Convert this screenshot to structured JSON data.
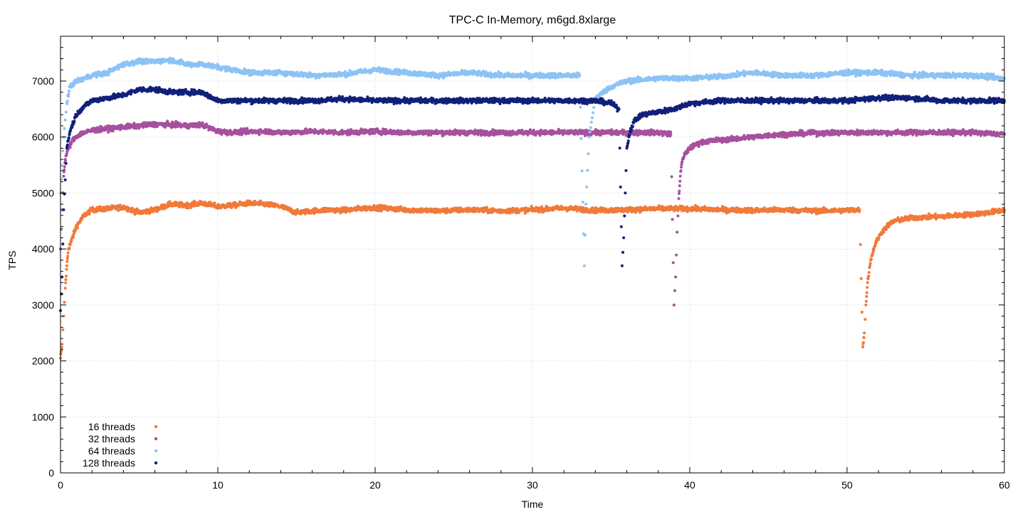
{
  "chart_data": {
    "type": "scatter",
    "title": "TPC-C In-Memory, m6gd.8xlarge",
    "xlabel": "Time",
    "ylabel": "TPS",
    "xlim": [
      0,
      60
    ],
    "ylim": [
      0,
      7800
    ],
    "x_ticks": [
      0,
      10,
      20,
      30,
      40,
      50,
      60
    ],
    "y_ticks": [
      0,
      1000,
      2000,
      3000,
      4000,
      5000,
      6000,
      7000
    ],
    "grid": true,
    "legend_position": "bottom-left",
    "series": [
      {
        "name": "16 threads",
        "color": "#f07a3a",
        "x": [
          0.0,
          0.1,
          0.2,
          0.3,
          0.4,
          0.5,
          0.7,
          1.0,
          1.5,
          2.0,
          3.0,
          4.0,
          5.0,
          6.0,
          7.0,
          8.0,
          9.0,
          10.0,
          11.0,
          12.0,
          13.0,
          14.0,
          15.0,
          16.0,
          17.0,
          18.0,
          19.0,
          20.0,
          22.0,
          24.0,
          26.0,
          28.0,
          30.0,
          32.0,
          34.0,
          36.0,
          38.0,
          40.0,
          42.0,
          44.0,
          46.0,
          48.0,
          50.0,
          50.8,
          51.0,
          51.1,
          51.2,
          51.3,
          51.5,
          51.8,
          52.2,
          52.6,
          53.0,
          54.0,
          55.0,
          56.0,
          57.0,
          58.0,
          59.0,
          60.0
        ],
        "y": [
          2050,
          2300,
          2800,
          3300,
          3700,
          4000,
          4150,
          4400,
          4600,
          4700,
          4720,
          4750,
          4650,
          4700,
          4800,
          4780,
          4820,
          4760,
          4780,
          4820,
          4800,
          4760,
          4650,
          4680,
          4700,
          4690,
          4720,
          4740,
          4700,
          4680,
          4700,
          4680,
          4700,
          4730,
          4690,
          4700,
          4720,
          4720,
          4700,
          4690,
          4700,
          4680,
          4690,
          4700,
          2250,
          2500,
          3000,
          3400,
          3800,
          4100,
          4300,
          4420,
          4500,
          4550,
          4570,
          4580,
          4600,
          4620,
          4650,
          4700
        ]
      },
      {
        "name": "32 threads",
        "color": "#a6509e",
        "x": [
          0.0,
          0.1,
          0.2,
          0.3,
          0.5,
          0.8,
          1.2,
          2.0,
          3.0,
          4.0,
          5.0,
          6.0,
          7.0,
          8.0,
          9.0,
          10.0,
          11.0,
          12.0,
          13.0,
          14.0,
          16.0,
          18.0,
          20.0,
          22.0,
          24.0,
          26.0,
          28.0,
          30.0,
          32.0,
          34.0,
          36.0,
          38.0,
          38.8,
          39.0,
          39.1,
          39.2,
          39.3,
          39.4,
          39.5,
          39.7,
          40.0,
          40.5,
          41.0,
          42.0,
          43.0,
          44.0,
          45.0,
          46.0,
          48.0,
          50.0,
          52.0,
          54.0,
          56.0,
          58.0,
          60.0
        ],
        "y": [
          4000,
          4700,
          5300,
          5600,
          5800,
          5950,
          6050,
          6120,
          6150,
          6180,
          6200,
          6230,
          6220,
          6200,
          6220,
          6100,
          6080,
          6100,
          6100,
          6080,
          6100,
          6080,
          6100,
          6080,
          6080,
          6080,
          6080,
          6080,
          6080,
          6080,
          6080,
          6080,
          6050,
          3000,
          3500,
          4300,
          4900,
          5300,
          5550,
          5700,
          5800,
          5880,
          5920,
          5950,
          5970,
          6000,
          6030,
          6050,
          6070,
          6080,
          6080,
          6080,
          6080,
          6080,
          6050
        ]
      },
      {
        "name": "64 threads",
        "color": "#8cc3f5",
        "x": [
          0.0,
          0.2,
          0.4,
          0.6,
          1.0,
          1.5,
          2.0,
          3.0,
          4.0,
          5.0,
          6.0,
          7.0,
          8.0,
          9.0,
          10.0,
          11.0,
          12.0,
          14.0,
          16.0,
          18.0,
          20.0,
          22.0,
          24.0,
          26.0,
          28.0,
          30.0,
          32.0,
          33.0,
          33.3,
          33.4,
          33.6,
          34.0,
          35.0,
          36.0,
          38.0,
          40.0,
          42.0,
          44.0,
          46.0,
          48.0,
          50.0,
          52.0,
          54.0,
          56.0,
          58.0,
          60.0
        ],
        "y": [
          5000,
          6000,
          6600,
          6900,
          7000,
          7050,
          7100,
          7150,
          7300,
          7350,
          7350,
          7380,
          7300,
          7300,
          7250,
          7200,
          7150,
          7150,
          7100,
          7120,
          7200,
          7150,
          7100,
          7150,
          7100,
          7100,
          7100,
          7100,
          3700,
          4800,
          6000,
          6700,
          6900,
          7000,
          7050,
          7050,
          7080,
          7150,
          7100,
          7100,
          7150,
          7150,
          7100,
          7100,
          7100,
          7050
        ]
      },
      {
        "name": "128 threads",
        "color": "#11207a",
        "x": [
          0.0,
          0.1,
          0.2,
          0.4,
          0.6,
          1.0,
          1.5,
          2.0,
          3.0,
          4.0,
          5.0,
          6.0,
          7.0,
          8.0,
          9.0,
          10.0,
          12.0,
          14.0,
          16.0,
          18.0,
          20.0,
          22.0,
          24.0,
          26.0,
          28.0,
          30.0,
          32.0,
          34.0,
          35.0,
          35.5,
          35.7,
          35.8,
          35.9,
          36.0,
          36.2,
          36.5,
          37.0,
          38.0,
          39.0,
          40.0,
          42.0,
          44.0,
          46.0,
          48.0,
          50.0,
          52.0,
          54.0,
          56.0,
          58.0,
          60.0
        ],
        "y": [
          2900,
          3500,
          4700,
          5800,
          6100,
          6400,
          6550,
          6650,
          6700,
          6750,
          6850,
          6850,
          6800,
          6800,
          6800,
          6650,
          6650,
          6650,
          6650,
          6680,
          6650,
          6650,
          6650,
          6650,
          6650,
          6650,
          6650,
          6650,
          6600,
          6500,
          3700,
          4200,
          5000,
          5800,
          6100,
          6300,
          6400,
          6450,
          6500,
          6600,
          6650,
          6650,
          6650,
          6650,
          6650,
          6700,
          6700,
          6650,
          6650,
          6650
        ]
      }
    ]
  }
}
